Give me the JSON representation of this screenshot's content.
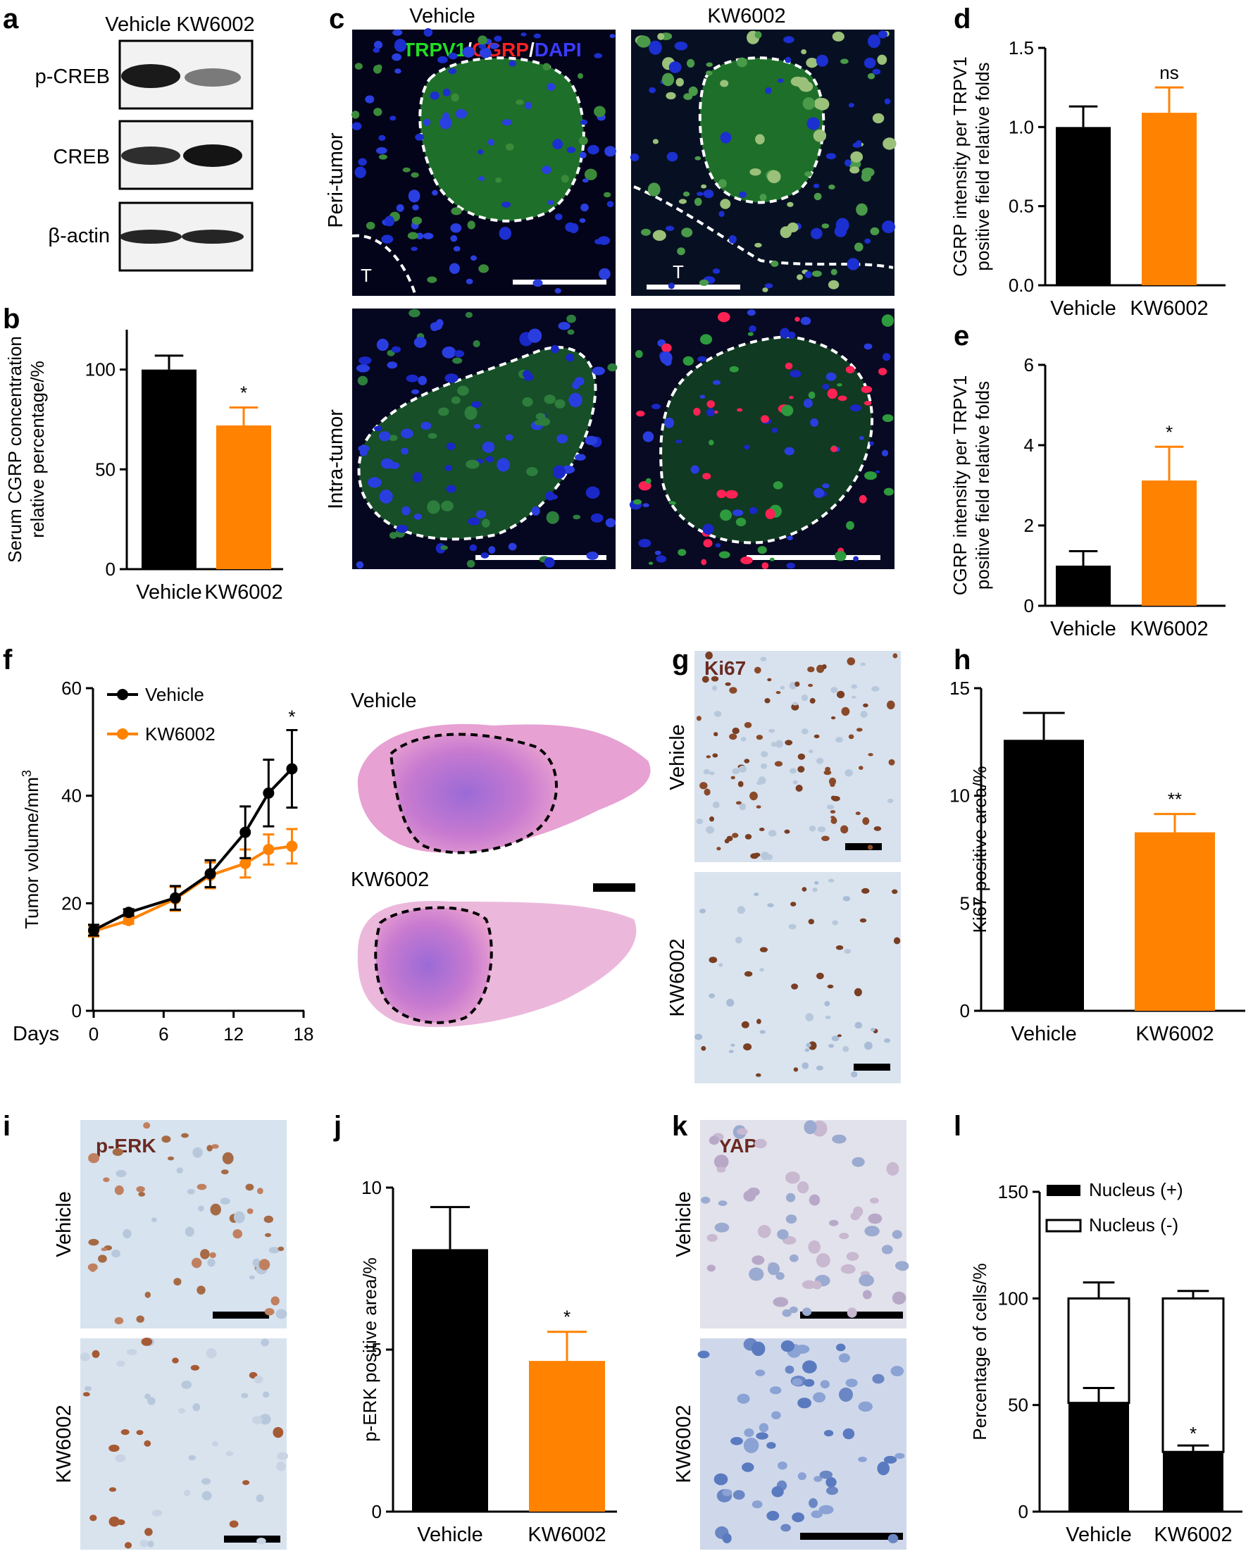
{
  "figure": {
    "panel_letters": [
      "a",
      "b",
      "c",
      "d",
      "e",
      "f",
      "g",
      "h",
      "i",
      "j",
      "k",
      "l"
    ],
    "colors": {
      "vehicle": "#000000",
      "kw6002": "#ff8200",
      "trpv1": "#22dd22",
      "cgrp": "#ff2222",
      "dapi": "#2222ff"
    }
  },
  "panel_a": {
    "groups": [
      "Vehicle",
      "KW6002"
    ],
    "blots": [
      "p-CREB",
      "CREB",
      "β-actin"
    ]
  },
  "panel_c": {
    "columns": [
      "Vehicle",
      "KW6002"
    ],
    "rows": [
      "Peri-tumor",
      "Intra-tumor"
    ],
    "stain_parts": [
      "TRPV1",
      "/",
      "CGRP",
      "/",
      "DAPI"
    ],
    "tumor_marker": "T"
  },
  "panel_f_images": {
    "labels": [
      "Vehicle",
      "KW6002"
    ]
  },
  "panel_g": {
    "stain": "Ki67",
    "rows": [
      "Vehicle",
      "KW6002"
    ]
  },
  "panel_i": {
    "stain": "p-ERK",
    "rows": [
      "Vehicle",
      "KW6002"
    ]
  },
  "panel_k": {
    "stain": "YAP",
    "rows": [
      "Vehicle",
      "KW6002"
    ]
  },
  "chart_data": [
    {
      "id": "b",
      "type": "bar",
      "categories": [
        "Vehicle",
        "KW6002"
      ],
      "values": [
        100,
        72
      ],
      "errors": [
        7,
        9
      ],
      "ylabel": "Serum CGRP concentration\nrelative percentage/%",
      "ylim": [
        0,
        120
      ],
      "yticks": [
        0,
        50,
        100
      ],
      "significance": [
        "",
        "*"
      ]
    },
    {
      "id": "d",
      "type": "bar",
      "categories": [
        "Vehicle",
        "KW6002"
      ],
      "values": [
        1.0,
        1.09
      ],
      "errors": [
        0.13,
        0.16
      ],
      "ylabel": "CGRP intensity per TRPV1\npositive field relative folds",
      "ylim": [
        0,
        1.5
      ],
      "yticks": [
        "0.0",
        "0.5",
        "1.0",
        "1.5"
      ],
      "significance": [
        "",
        "ns"
      ]
    },
    {
      "id": "e",
      "type": "bar",
      "categories": [
        "Vehicle",
        "KW6002"
      ],
      "values": [
        1.0,
        3.12
      ],
      "errors": [
        0.36,
        0.84
      ],
      "ylabel": "CGRP intensity per TRPV1\npositive field relative folds",
      "ylim": [
        0,
        6
      ],
      "yticks": [
        0,
        2,
        4,
        6
      ],
      "significance": [
        "",
        "*"
      ]
    },
    {
      "id": "f",
      "type": "line",
      "x": [
        0,
        3,
        7,
        10,
        13,
        15,
        17
      ],
      "xlabel": "Days",
      "ylabel": "Tumor volume/mm3",
      "ylabel_text": "Tumor volume/mm",
      "ylabel_sup": "3",
      "xticks": [
        0,
        6,
        12,
        18
      ],
      "yticks": [
        0,
        20,
        40,
        60
      ],
      "xlim": [
        0,
        18
      ],
      "ylim": [
        0,
        60
      ],
      "series": [
        {
          "name": "Vehicle",
          "values": [
            15,
            18.3,
            21,
            25.5,
            33.2,
            40.5,
            45
          ],
          "errors": [
            1,
            0.6,
            2.2,
            2.5,
            4.8,
            6.2,
            7.2
          ]
        },
        {
          "name": "KW6002",
          "values": [
            14.8,
            16.8,
            20.8,
            25.2,
            27.4,
            30,
            30.6
          ],
          "errors": [
            1,
            0.6,
            2.2,
            2.4,
            2.6,
            2.8,
            3.2
          ]
        }
      ],
      "significance_label": "*",
      "legend": "top-left"
    },
    {
      "id": "h",
      "type": "bar",
      "categories": [
        "Vehicle",
        "KW6002"
      ],
      "values": [
        12.6,
        8.3
      ],
      "errors": [
        1.25,
        0.85
      ],
      "ylabel": "Ki67 positive area/%",
      "ylim": [
        0,
        15
      ],
      "yticks": [
        0,
        5,
        10,
        15
      ],
      "significance": [
        "",
        "**"
      ]
    },
    {
      "id": "j",
      "type": "bar",
      "categories": [
        "Vehicle",
        "KW6002"
      ],
      "values": [
        8.1,
        4.65
      ],
      "errors": [
        1.3,
        0.9
      ],
      "ylabel": "p-ERK positive area/%",
      "ylim": [
        0,
        10
      ],
      "yticks": [
        0,
        5,
        10
      ],
      "significance": [
        "",
        "*"
      ]
    },
    {
      "id": "l",
      "type": "bar",
      "categories": [
        "Vehicle",
        "KW6002"
      ],
      "stacked": true,
      "series": [
        {
          "name": "Nucleus (+)",
          "values": [
            51,
            28
          ],
          "errors": [
            7,
            3
          ]
        },
        {
          "name": "Nucleus (-)",
          "values": [
            49,
            72
          ],
          "errors": [
            7.5,
            3.5
          ]
        }
      ],
      "ylabel": "Percentage of cells/%",
      "ylim": [
        0,
        150
      ],
      "yticks": [
        0,
        50,
        100,
        150
      ],
      "significance": [
        "",
        "*"
      ],
      "legend": "top-left"
    }
  ]
}
